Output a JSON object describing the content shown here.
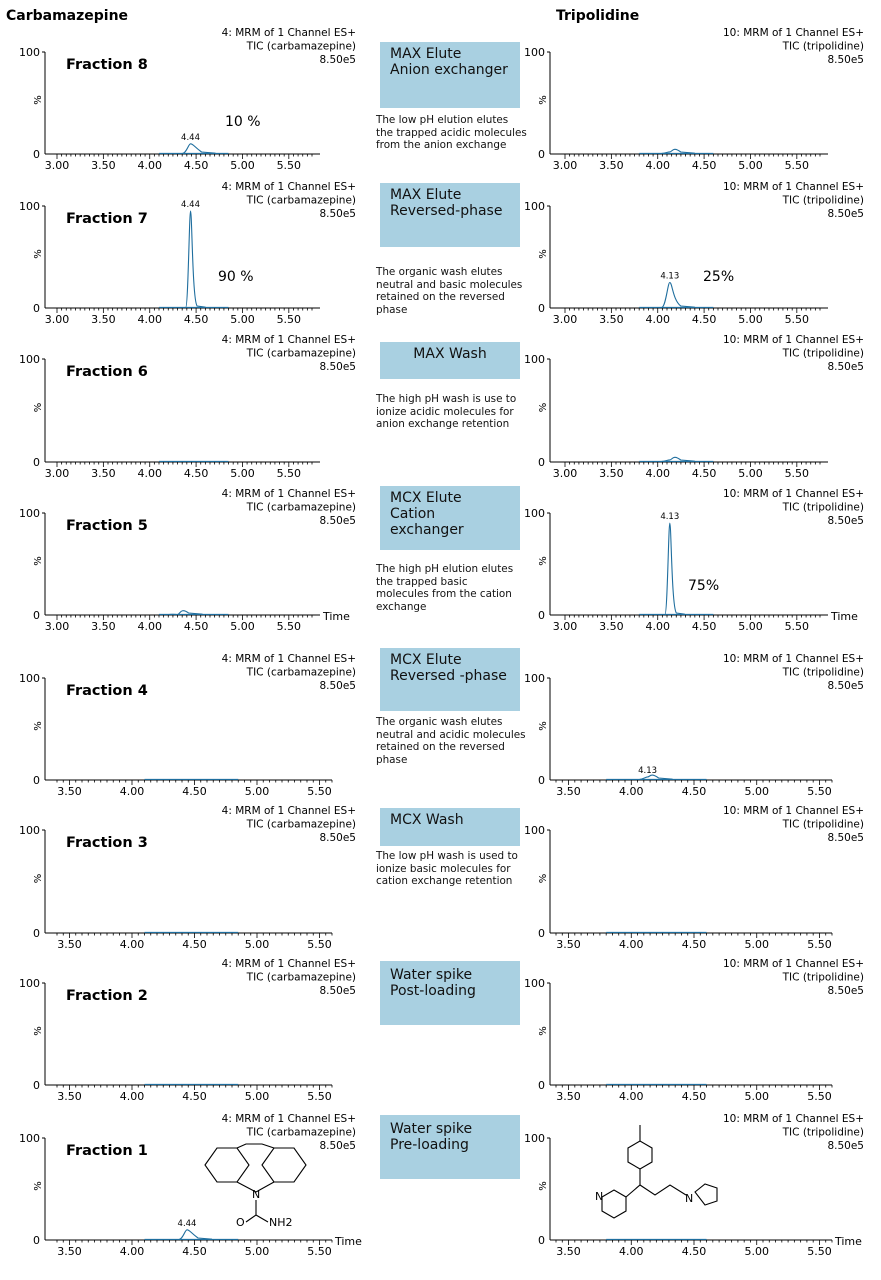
{
  "columns": {
    "left": "Carbamazepine",
    "right": "Tripolidine"
  },
  "time_label": "Time",
  "colors": {
    "trace": "#1f6e9e",
    "box": "#a9d0e1"
  },
  "steps": [
    {
      "line1": "MAX Elute",
      "line2": "Anion exchanger",
      "desc": [
        "The low pH elution elutes",
        "the trapped acidic molecules",
        "from the anion exchange"
      ]
    },
    {
      "line1": "MAX Elute",
      "line2": "Reversed-phase",
      "desc": [
        "The organic wash elutes",
        "neutral and basic molecules",
        "retained on the reversed",
        "phase"
      ]
    },
    {
      "line1": "MAX Wash",
      "line2": "",
      "desc": [
        "The high pH wash is use to",
        "ionize acidic molecules for",
        "anion exchange retention"
      ]
    },
    {
      "line1": "MCX Elute",
      "line2": "Cation exchanger",
      "desc": [
        "The high pH elution elutes",
        "the trapped basic",
        "molecules from the cation",
        "exchange"
      ]
    },
    {
      "line1": "MCX Elute",
      "line2": "Reversed -phase",
      "desc": [
        "The organic wash elutes",
        "neutral and acidic molecules",
        "retained on the reversed",
        "phase"
      ]
    },
    {
      "line1": "MCX Wash",
      "line2": "",
      "desc": [
        "The low pH wash is used to",
        "ionize basic molecules for",
        "cation exchange retention"
      ]
    },
    {
      "line1": "Water spike",
      "line2": "Post-loading",
      "desc": []
    },
    {
      "line1": "Water spike",
      "line2": "Pre-loading",
      "desc": []
    }
  ],
  "chart_data": [
    {
      "type": "line",
      "compound": "Carbamazepine",
      "fraction_label": "Fraction 8",
      "header": [
        "4: MRM of 1 Channel ES+",
        "TIC (carbamazepine)",
        "8.50e5"
      ],
      "xlim": [
        3.0,
        5.75
      ],
      "xticks": [
        "3.00",
        "3.50",
        "4.00",
        "4.50",
        "5.00",
        "5.50"
      ],
      "ylim": [
        0,
        100
      ],
      "yticks": [
        "0",
        "100"
      ],
      "ylabel": "%",
      "baseline": [
        4.1,
        4.85
      ],
      "peak": {
        "rt": 4.44,
        "height": 10,
        "label": "4.44"
      },
      "annotation": "10 %",
      "show_time": false
    },
    {
      "type": "line",
      "compound": "Tripolidine",
      "fraction_label": "",
      "header": [
        "10: MRM of 1 Channel ES+",
        "TIC (tripolidine)",
        "8.50e5"
      ],
      "xlim": [
        3.0,
        5.75
      ],
      "xticks": [
        "3.00",
        "3.50",
        "4.00",
        "4.50",
        "5.00",
        "5.50"
      ],
      "ylim": [
        0,
        100
      ],
      "yticks": [
        "0",
        "100"
      ],
      "ylabel": "%",
      "baseline": [
        3.8,
        4.6
      ],
      "peak": {
        "rt": 4.13,
        "height": 2,
        "label": ""
      },
      "annotation": "",
      "show_time": false
    },
    {
      "type": "line",
      "compound": "Carbamazepine",
      "fraction_label": "Fraction 7",
      "header": [
        "4: MRM of 1 Channel ES+",
        "TIC (carbamazepine)",
        "8.50e5"
      ],
      "xlim": [
        3.0,
        5.75
      ],
      "xticks": [
        "3.00",
        "3.50",
        "4.00",
        "4.50",
        "5.00",
        "5.50"
      ],
      "ylim": [
        0,
        100
      ],
      "yticks": [
        "0",
        "100"
      ],
      "ylabel": "%",
      "baseline": [
        4.1,
        4.85
      ],
      "peak": {
        "rt": 4.44,
        "height": 95,
        "label": "4.44"
      },
      "annotation": "90 %",
      "show_time": false
    },
    {
      "type": "line",
      "compound": "Tripolidine",
      "fraction_label": "",
      "header": [
        "10: MRM of 1 Channel ES+",
        "TIC (tripolidine)",
        "8.50e5"
      ],
      "xlim": [
        3.0,
        5.75
      ],
      "xticks": [
        "3.00",
        "3.50",
        "4.00",
        "4.50",
        "5.00",
        "5.50"
      ],
      "ylim": [
        0,
        100
      ],
      "yticks": [
        "0",
        "100"
      ],
      "ylabel": "%",
      "baseline": [
        3.8,
        4.6
      ],
      "peak": {
        "rt": 4.13,
        "height": 25,
        "label": "4.13"
      },
      "annotation": "25%",
      "show_time": false
    },
    {
      "type": "line",
      "compound": "Carbamazepine",
      "fraction_label": "Fraction 6",
      "header": [
        "4: MRM of 1 Channel ES+",
        "TIC (carbamazepine)",
        "8.50e5"
      ],
      "xlim": [
        3.0,
        5.75
      ],
      "xticks": [
        "3.00",
        "3.50",
        "4.00",
        "4.50",
        "5.00",
        "5.50"
      ],
      "ylim": [
        0,
        100
      ],
      "yticks": [
        "0",
        "100"
      ],
      "ylabel": "%",
      "baseline": [
        4.1,
        4.85
      ],
      "peak": null,
      "annotation": "",
      "show_time": false
    },
    {
      "type": "line",
      "compound": "Tripolidine",
      "fraction_label": "",
      "header": [
        "10: MRM of 1 Channel ES+",
        "TIC (tripolidine)",
        "8.50e5"
      ],
      "xlim": [
        3.0,
        5.75
      ],
      "xticks": [
        "3.00",
        "3.50",
        "4.00",
        "4.50",
        "5.00",
        "5.50"
      ],
      "ylim": [
        0,
        100
      ],
      "yticks": [
        "0",
        "100"
      ],
      "ylabel": "%",
      "baseline": [
        3.8,
        4.6
      ],
      "peak": {
        "rt": 4.13,
        "height": 2,
        "label": ""
      },
      "annotation": "",
      "show_time": false
    },
    {
      "type": "line",
      "compound": "Carbamazepine",
      "fraction_label": "Fraction 5",
      "header": [
        "4: MRM of 1 Channel ES+",
        "TIC (carbamazepine)",
        "8.50e5"
      ],
      "xlim": [
        3.0,
        5.75
      ],
      "xticks": [
        "3.00",
        "3.50",
        "4.00",
        "4.50",
        "5.00",
        "5.50"
      ],
      "ylim": [
        0,
        100
      ],
      "yticks": [
        "0",
        "100"
      ],
      "ylabel": "%",
      "baseline": [
        4.1,
        4.85
      ],
      "peak": {
        "rt": 4.3,
        "height": 0.5,
        "label": ""
      },
      "annotation": "",
      "show_time": true
    },
    {
      "type": "line",
      "compound": "Tripolidine",
      "fraction_label": "",
      "header": [
        "10: MRM of 1 Channel ES+",
        "TIC (tripolidine)",
        "8.50e5"
      ],
      "xlim": [
        3.0,
        5.75
      ],
      "xticks": [
        "3.00",
        "3.50",
        "4.00",
        "4.50",
        "5.00",
        "5.50"
      ],
      "ylim": [
        0,
        100
      ],
      "yticks": [
        "0",
        "100"
      ],
      "ylabel": "%",
      "baseline": [
        3.8,
        4.6
      ],
      "peak": {
        "rt": 4.13,
        "height": 90,
        "label": "4.13"
      },
      "annotation": "75%",
      "show_time": true
    },
    {
      "type": "line",
      "compound": "Carbamazepine",
      "fraction_label": "Fraction 4",
      "header": [
        "4: MRM of 1 Channel ES+",
        "TIC (carbamazepine)",
        "8.50e5"
      ],
      "xlim": [
        3.4,
        5.6
      ],
      "xticks": [
        "3.50",
        "4.00",
        "4.50",
        "5.00",
        "5.50"
      ],
      "ylim": [
        0,
        100
      ],
      "yticks": [
        "0",
        "100"
      ],
      "ylabel": "%",
      "baseline": [
        4.1,
        4.85
      ],
      "peak": null,
      "annotation": "",
      "show_time": false
    },
    {
      "type": "line",
      "compound": "Tripolidine",
      "fraction_label": "",
      "header": [
        "10: MRM of 1 Channel ES+",
        "TIC (tripolidine)",
        "8.50e5"
      ],
      "xlim": [
        3.4,
        5.6
      ],
      "xticks": [
        "3.50",
        "4.00",
        "4.50",
        "5.00",
        "5.50"
      ],
      "ylim": [
        0,
        100
      ],
      "yticks": [
        "0",
        "100"
      ],
      "ylabel": "%",
      "baseline": [
        3.8,
        4.6
      ],
      "peak": {
        "rt": 4.13,
        "height": 3,
        "label": "4.13"
      },
      "annotation": "",
      "show_time": false
    },
    {
      "type": "line",
      "compound": "Carbamazepine",
      "fraction_label": "Fraction 3",
      "header": [
        "4: MRM of 1 Channel ES+",
        "TIC (carbamazepine)",
        "8.50e5"
      ],
      "xlim": [
        3.4,
        5.6
      ],
      "xticks": [
        "3.50",
        "4.00",
        "4.50",
        "5.00",
        "5.50"
      ],
      "ylim": [
        0,
        100
      ],
      "yticks": [
        "0",
        "100"
      ],
      "ylabel": "%",
      "baseline": [
        4.1,
        4.85
      ],
      "peak": null,
      "annotation": "",
      "show_time": false
    },
    {
      "type": "line",
      "compound": "Tripolidine",
      "fraction_label": "",
      "header": [
        "10: MRM of 1 Channel ES+",
        "TIC (tripolidine)",
        "8.50e5"
      ],
      "xlim": [
        3.4,
        5.6
      ],
      "xticks": [
        "3.50",
        "4.00",
        "4.50",
        "5.00",
        "5.50"
      ],
      "ylim": [
        0,
        100
      ],
      "yticks": [
        "0",
        "100"
      ],
      "ylabel": "%",
      "baseline": [
        3.8,
        4.6
      ],
      "peak": null,
      "annotation": "",
      "show_time": false
    },
    {
      "type": "line",
      "compound": "Carbamazepine",
      "fraction_label": "Fraction 2",
      "header": [
        "4: MRM of 1 Channel ES+",
        "TIC (carbamazepine)",
        "8.50e5"
      ],
      "xlim": [
        3.4,
        5.6
      ],
      "xticks": [
        "3.50",
        "4.00",
        "4.50",
        "5.00",
        "5.50"
      ],
      "ylim": [
        0,
        100
      ],
      "yticks": [
        "0",
        "100"
      ],
      "ylabel": "%",
      "baseline": [
        4.1,
        4.85
      ],
      "peak": null,
      "annotation": "",
      "show_time": false
    },
    {
      "type": "line",
      "compound": "Tripolidine",
      "fraction_label": "",
      "header": [
        "10: MRM of 1 Channel ES+",
        "TIC (tripolidine)",
        "8.50e5"
      ],
      "xlim": [
        3.4,
        5.6
      ],
      "xticks": [
        "3.50",
        "4.00",
        "4.50",
        "5.00",
        "5.50"
      ],
      "ylim": [
        0,
        100
      ],
      "yticks": [
        "0",
        "100"
      ],
      "ylabel": "%",
      "baseline": [
        3.8,
        4.6
      ],
      "peak": null,
      "annotation": "",
      "show_time": false
    },
    {
      "type": "line",
      "compound": "Carbamazepine",
      "fraction_label": "Fraction 1",
      "header": [
        "4: MRM of 1 Channel ES+",
        "TIC (carbamazepine)",
        "8.50e5"
      ],
      "xlim": [
        3.4,
        5.6
      ],
      "xticks": [
        "3.50",
        "4.00",
        "4.50",
        "5.00",
        "5.50"
      ],
      "ylim": [
        0,
        100
      ],
      "yticks": [
        "0",
        "100"
      ],
      "ylabel": "%",
      "baseline": [
        4.1,
        4.85
      ],
      "peak": {
        "rt": 4.44,
        "height": 10,
        "label": "4.44"
      },
      "annotation": "",
      "show_time": true,
      "structure": "carbamazepine",
      "structure_label": "NH2"
    },
    {
      "type": "line",
      "compound": "Tripolidine",
      "fraction_label": "",
      "header": [
        "10: MRM of 1 Channel ES+",
        "TIC (tripolidine)",
        "8.50e5"
      ],
      "xlim": [
        3.4,
        5.6
      ],
      "xticks": [
        "3.50",
        "4.00",
        "4.50",
        "5.00",
        "5.50"
      ],
      "ylim": [
        0,
        100
      ],
      "yticks": [
        "0",
        "100"
      ],
      "ylabel": "%",
      "baseline": [
        3.8,
        4.6
      ],
      "peak": null,
      "annotation": "",
      "show_time": true,
      "structure": "tripolidine"
    }
  ]
}
